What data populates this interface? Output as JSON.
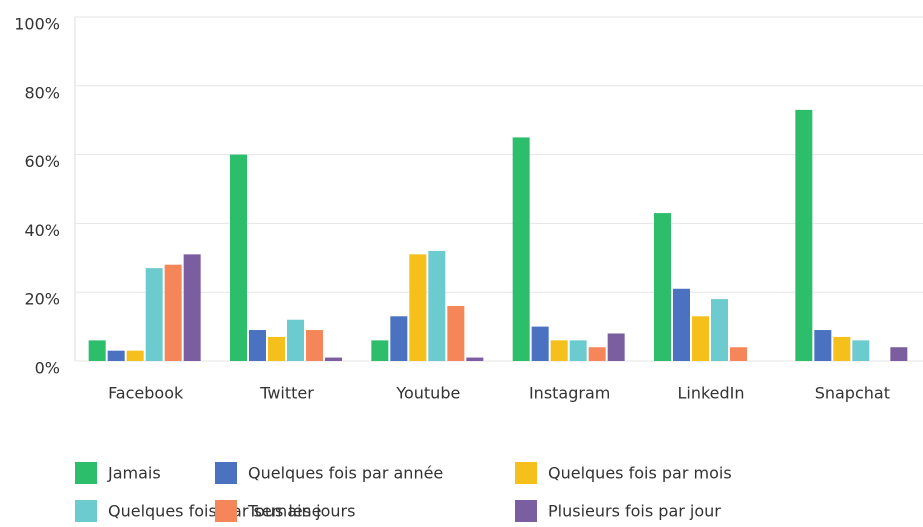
{
  "chart_data": {
    "type": "bar",
    "categories": [
      "Facebook",
      "Twitter",
      "Youtube",
      "Instagram",
      "LinkedIn",
      "Snapchat"
    ],
    "series": [
      {
        "name": "Jamais",
        "color": "#2dbe6c",
        "values": [
          6,
          60,
          6,
          65,
          43,
          73
        ]
      },
      {
        "name": "Quelques fois par année",
        "color": "#4a72c1",
        "values": [
          3,
          9,
          13,
          10,
          21,
          9
        ]
      },
      {
        "name": "Quelques fois par mois",
        "color": "#f5bf1c",
        "values": [
          3,
          7,
          31,
          6,
          13,
          7
        ]
      },
      {
        "name": "Quelques fois par semaine",
        "color": "#6ccbcf",
        "values": [
          27,
          12,
          32,
          6,
          18,
          6
        ]
      },
      {
        "name": "Tous les jours",
        "color": "#f5865a",
        "values": [
          28,
          9,
          16,
          4,
          4,
          0
        ]
      },
      {
        "name": "Plusieurs fois par jour",
        "color": "#7b5ea0",
        "values": [
          31,
          1,
          1,
          8,
          0,
          4
        ]
      }
    ],
    "ylim": [
      0,
      100
    ],
    "yticks": [
      {
        "value": 0,
        "label": "0%"
      },
      {
        "value": 20,
        "label": "20%"
      },
      {
        "value": 40,
        "label": "40%"
      },
      {
        "value": 60,
        "label": "60%"
      },
      {
        "value": 80,
        "label": "80%"
      },
      {
        "value": 100,
        "label": "100%"
      }
    ],
    "grid": true
  }
}
